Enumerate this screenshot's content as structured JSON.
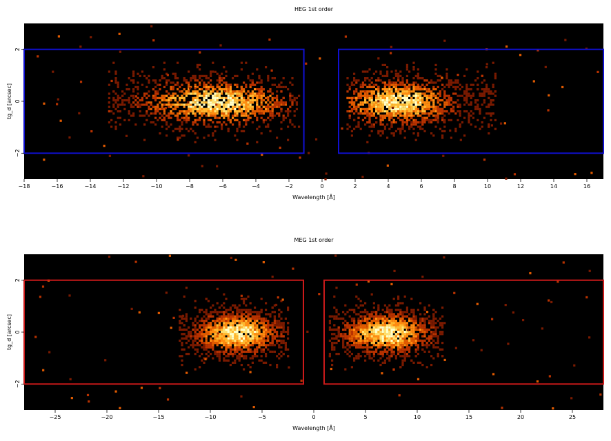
{
  "chart_data": [
    {
      "type": "heatmap",
      "title": "HEG 1st order",
      "xlabel": "Wavelength [Å]",
      "ylabel": "tg_d [arcsec]",
      "xlim": [
        -18,
        17
      ],
      "ylim": [
        -3,
        3
      ],
      "xticks": [
        -18,
        -16,
        -14,
        -12,
        -10,
        -8,
        -6,
        -4,
        -2,
        0,
        2,
        4,
        6,
        8,
        10,
        12,
        14,
        16
      ],
      "xtick_labels": [
        "−18",
        "−16",
        "−14",
        "−12",
        "−10",
        "−8",
        "−6",
        "−4",
        "−2",
        "0",
        "2",
        "4",
        "6",
        "8",
        "10",
        "12",
        "14",
        "16"
      ],
      "yticks": [
        -2,
        0,
        2
      ],
      "ytick_labels": [
        "−2",
        "0",
        "2"
      ],
      "background": "#000000",
      "colormap": "hot",
      "region_color": "#1010d0",
      "extraction_regions": [
        {
          "x": [
            -18,
            -1.1
          ],
          "y": [
            -2,
            2
          ]
        },
        {
          "x": [
            1.0,
            17
          ],
          "y": [
            -2,
            2
          ]
        }
      ],
      "emission_clusters": [
        {
          "x_range": [
            -13,
            -1.5
          ],
          "y_sigma": 0.55,
          "peak_x": -6.5
        },
        {
          "x_range": [
            1.5,
            10.5
          ],
          "y_sigma": 0.55,
          "peak_x": 4.5
        }
      ]
    },
    {
      "type": "heatmap",
      "title": "MEG 1st order",
      "xlabel": "Wavelength [Å]",
      "ylabel": "tg_d [arcsec]",
      "xlim": [
        -28,
        28
      ],
      "ylim": [
        -3,
        3
      ],
      "xticks": [
        -25,
        -20,
        -15,
        -10,
        -5,
        0,
        5,
        10,
        15,
        20,
        25
      ],
      "xtick_labels": [
        "−25",
        "−20",
        "−15",
        "−10",
        "−5",
        "0",
        "5",
        "10",
        "15",
        "20",
        "25"
      ],
      "yticks": [
        -2,
        0,
        2
      ],
      "ytick_labels": [
        "−2",
        "0",
        "2"
      ],
      "background": "#000000",
      "colormap": "hot",
      "region_color": "#cc1a1a",
      "extraction_regions": [
        {
          "x": [
            -28,
            -1.0
          ],
          "y": [
            -2,
            2
          ]
        },
        {
          "x": [
            1.0,
            28
          ],
          "y": [
            -2,
            2
          ]
        }
      ],
      "emission_clusters": [
        {
          "x_range": [
            -13,
            -2.5
          ],
          "y_sigma": 0.5,
          "peak_x": -7.5
        },
        {
          "x_range": [
            1.5,
            12.5
          ],
          "y_sigma": 0.5,
          "peak_x": 7.0
        }
      ]
    }
  ]
}
